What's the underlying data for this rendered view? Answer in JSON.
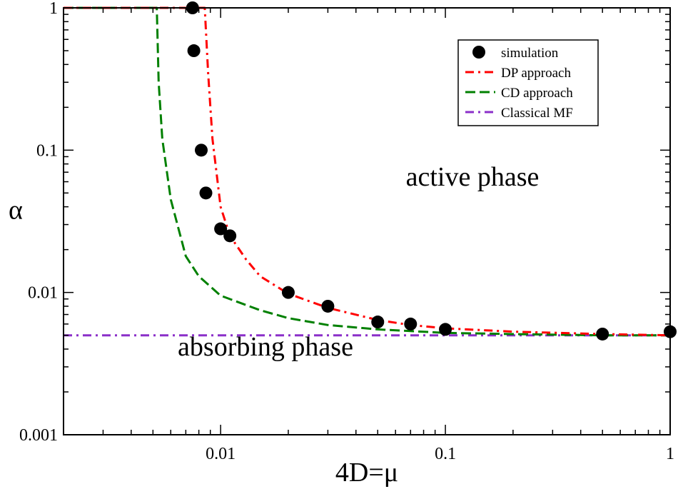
{
  "chart_data": {
    "type": "line",
    "title": "",
    "xlabel": "4D=μ",
    "ylabel": "α",
    "xscale": "log",
    "yscale": "log",
    "xlim": [
      0.002,
      1
    ],
    "ylim": [
      0.001,
      1
    ],
    "x_tick_labels": [
      {
        "value": 0.01,
        "label": "0.01"
      },
      {
        "value": 0.1,
        "label": "0.1"
      },
      {
        "value": 1,
        "label": "1"
      }
    ],
    "y_tick_labels": [
      {
        "value": 0.001,
        "label": "0.001"
      },
      {
        "value": 0.01,
        "label": "0.01"
      },
      {
        "value": 0.1,
        "label": "0.1"
      },
      {
        "value": 1,
        "label": "1"
      }
    ],
    "legend_position": "top-right",
    "series": [
      {
        "name": "simulation",
        "kind": "scatter",
        "color": "#000000",
        "x": [
          0.0075,
          0.0076,
          0.0082,
          0.0086,
          0.01,
          0.011,
          0.02,
          0.03,
          0.05,
          0.07,
          0.1,
          0.5,
          1.0
        ],
        "y": [
          1.0,
          0.5,
          0.1,
          0.05,
          0.028,
          0.025,
          0.01,
          0.008,
          0.0062,
          0.006,
          0.0055,
          0.0051,
          0.0053
        ]
      },
      {
        "name": "DP approach",
        "kind": "line",
        "style": "dash-dot",
        "color": "#ff0000",
        "x": [
          0.002,
          0.0075,
          0.0085,
          0.0088,
          0.0092,
          0.01,
          0.011,
          0.013,
          0.015,
          0.02,
          0.03,
          0.05,
          0.07,
          0.1,
          0.2,
          0.5,
          1.0
        ],
        "y": [
          1.0,
          1.0,
          1.0,
          0.35,
          0.12,
          0.04,
          0.025,
          0.017,
          0.013,
          0.0098,
          0.0078,
          0.0064,
          0.0059,
          0.0056,
          0.0053,
          0.0051,
          0.005
        ]
      },
      {
        "name": "CD approach",
        "kind": "line",
        "style": "dashed",
        "color": "#008000",
        "x": [
          0.002,
          0.0052,
          0.0053,
          0.0055,
          0.006,
          0.007,
          0.008,
          0.01,
          0.015,
          0.02,
          0.03,
          0.05,
          0.1,
          0.2,
          0.5,
          1.0
        ],
        "y": [
          1.0,
          1.0,
          0.3,
          0.12,
          0.045,
          0.018,
          0.013,
          0.0095,
          0.0075,
          0.0066,
          0.0059,
          0.0055,
          0.0052,
          0.0051,
          0.005,
          0.005
        ]
      },
      {
        "name": "Classical MF",
        "kind": "line",
        "style": "dash-dot",
        "color": "#8b2fc9",
        "x": [
          0.002,
          1.0
        ],
        "y": [
          0.005,
          0.005
        ]
      }
    ],
    "annotations": [
      {
        "text": "active phase",
        "x": 0.1,
        "y": 0.08
      },
      {
        "text": "absorbing phase",
        "x": 0.016,
        "y": 0.0025
      }
    ]
  }
}
